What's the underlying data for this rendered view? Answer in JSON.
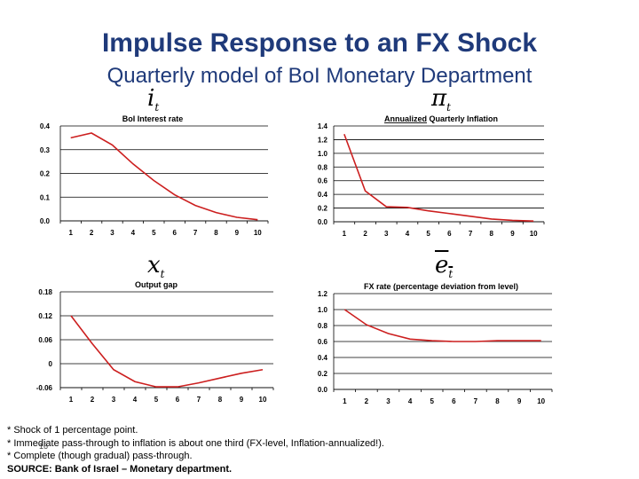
{
  "title": "Impulse Response to an FX Shock",
  "subtitle": "Quarterly model of BoI Monetary Department",
  "symbols": {
    "top_left": "i",
    "top_right": "π",
    "bottom_left": "x",
    "bottom_right": "e",
    "subscript": "t"
  },
  "chart_data": [
    {
      "type": "line",
      "title": "BoI Interest rate",
      "title_underline": "",
      "x": [
        1,
        2,
        3,
        4,
        5,
        6,
        7,
        8,
        9,
        10
      ],
      "series": [
        {
          "values": [
            0.35,
            0.37,
            0.32,
            0.24,
            0.17,
            0.11,
            0.065,
            0.035,
            0.015,
            0.005
          ],
          "color": "#cc1f1f"
        }
      ],
      "ylim": [
        0,
        0.4
      ],
      "yticks": [
        "0.0",
        "0.1",
        "0.2",
        "0.3",
        "0.4"
      ],
      "grid": true
    },
    {
      "type": "line",
      "title": " Quarterly Inflation",
      "title_underline": "Annualized",
      "x": [
        1,
        2,
        3,
        4,
        5,
        6,
        7,
        8,
        9,
        10
      ],
      "series": [
        {
          "values": [
            1.28,
            0.45,
            0.22,
            0.21,
            0.16,
            0.12,
            0.08,
            0.04,
            0.02,
            0.01
          ],
          "color": "#cc1f1f"
        }
      ],
      "ylim": [
        0,
        1.4
      ],
      "yticks": [
        "0.0",
        "0.2",
        "0.4",
        "0.6",
        "0.8",
        "1.0",
        "1.2",
        "1.4"
      ],
      "grid": true
    },
    {
      "type": "line",
      "title": "Output gap",
      "title_underline": "",
      "x": [
        1,
        2,
        3,
        4,
        5,
        6,
        7,
        8,
        9,
        10
      ],
      "series": [
        {
          "values": [
            0.12,
            0.05,
            -0.015,
            -0.045,
            -0.058,
            -0.058,
            -0.048,
            -0.036,
            -0.024,
            -0.015
          ],
          "color": "#cc1f1f"
        }
      ],
      "ylim": [
        -0.06,
        0.18
      ],
      "yticks": [
        "-0.06",
        "0",
        "0.06",
        "0.12",
        "0.18"
      ],
      "grid": true
    },
    {
      "type": "line",
      "title": "FX rate (percentage deviation from level)",
      "title_underline": "",
      "x": [
        1,
        2,
        3,
        4,
        5,
        6,
        7,
        8,
        9,
        10
      ],
      "series": [
        {
          "values": [
            1.0,
            0.81,
            0.7,
            0.63,
            0.61,
            0.6,
            0.6,
            0.61,
            0.61,
            0.61
          ],
          "color": "#cc1f1f"
        }
      ],
      "ylim": [
        0,
        1.2
      ],
      "yticks": [
        "0.0",
        "0.2",
        "0.4",
        "0.6",
        "0.8",
        "1.0",
        "1.2"
      ],
      "grid": true
    }
  ],
  "notes": [
    "* Shock of 1 percentage point.",
    "* Immediate pass-through to inflation is about one third (FX-level, Inflation-annualized!).",
    "* Complete (though gradual) pass-through."
  ],
  "source": "SOURCE: Bank of Israel – Monetary department.",
  "page_number": "16"
}
